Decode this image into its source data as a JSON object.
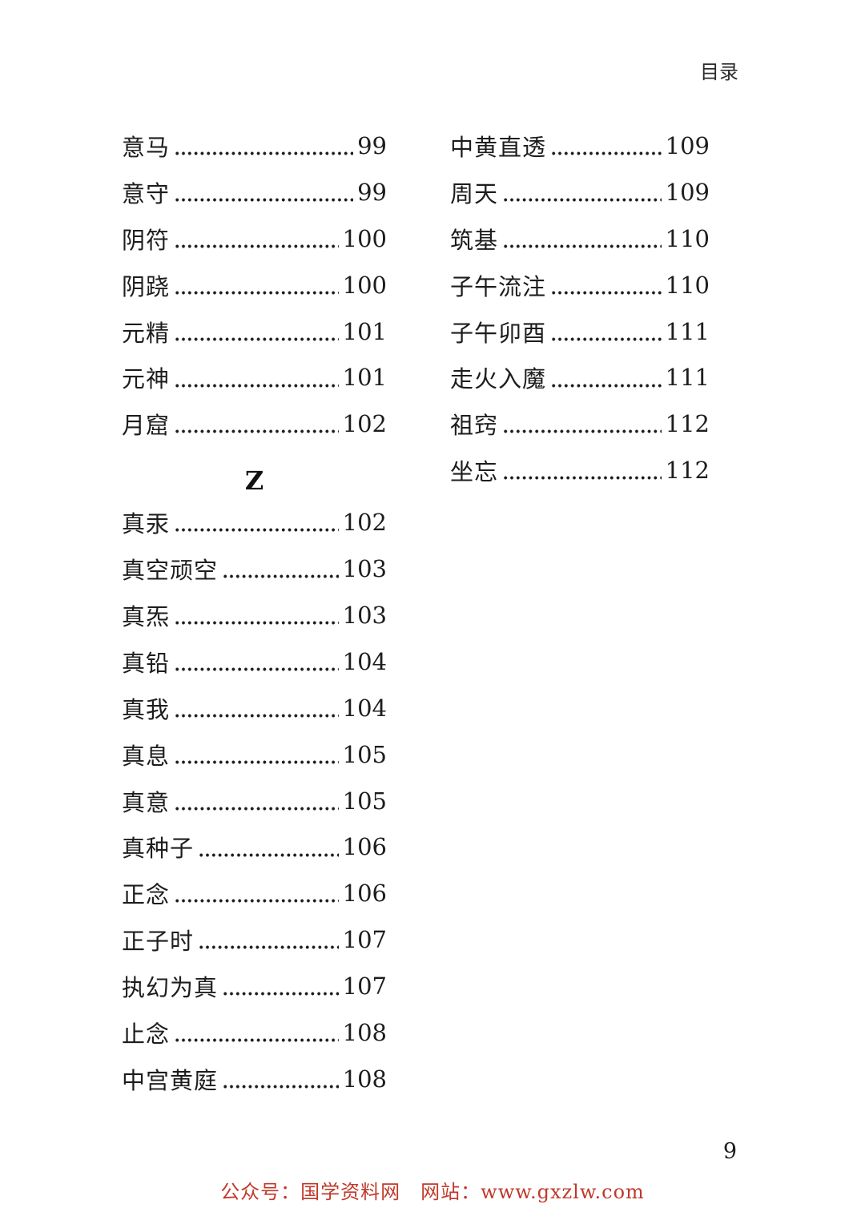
{
  "page": {
    "header_title": "目录",
    "page_number": "9",
    "footer_watermark": "公众号：国学资料网　网站：www.gxzlw.com",
    "watermark_color": "#c0392b",
    "text_color": "#1d1d1d"
  },
  "toc": {
    "section_letter": "Z",
    "left_column": {
      "before_section": [
        {
          "term": "意马",
          "page": "99"
        },
        {
          "term": "意守",
          "page": "99"
        },
        {
          "term": "阴符",
          "page": "100"
        },
        {
          "term": "阴跷",
          "page": "100"
        },
        {
          "term": "元精",
          "page": "101"
        },
        {
          "term": "元神",
          "page": "101"
        },
        {
          "term": "月窟",
          "page": "102"
        }
      ],
      "after_section": [
        {
          "term": "真汞",
          "page": "102"
        },
        {
          "term": "真空顽空",
          "page": "103"
        },
        {
          "term": "真炁",
          "page": "103"
        },
        {
          "term": "真铅",
          "page": "104"
        },
        {
          "term": "真我",
          "page": "104"
        },
        {
          "term": "真息",
          "page": "105"
        },
        {
          "term": "真意",
          "page": "105"
        },
        {
          "term": "真种子",
          "page": "106"
        },
        {
          "term": "正念",
          "page": "106"
        },
        {
          "term": "正子时",
          "page": "107"
        },
        {
          "term": "执幻为真",
          "page": "107"
        },
        {
          "term": "止念",
          "page": "108"
        },
        {
          "term": "中宫黄庭",
          "page": "108"
        }
      ]
    },
    "right_column": {
      "entries": [
        {
          "term": "中黄直透",
          "page": "109"
        },
        {
          "term": "周天",
          "page": "109"
        },
        {
          "term": "筑基",
          "page": "110"
        },
        {
          "term": "子午流注",
          "page": "110"
        },
        {
          "term": "子午卯酉",
          "page": "111"
        },
        {
          "term": "走火入魔",
          "page": "111"
        },
        {
          "term": "祖窍",
          "page": "112"
        },
        {
          "term": "坐忘",
          "page": "112"
        }
      ]
    }
  }
}
